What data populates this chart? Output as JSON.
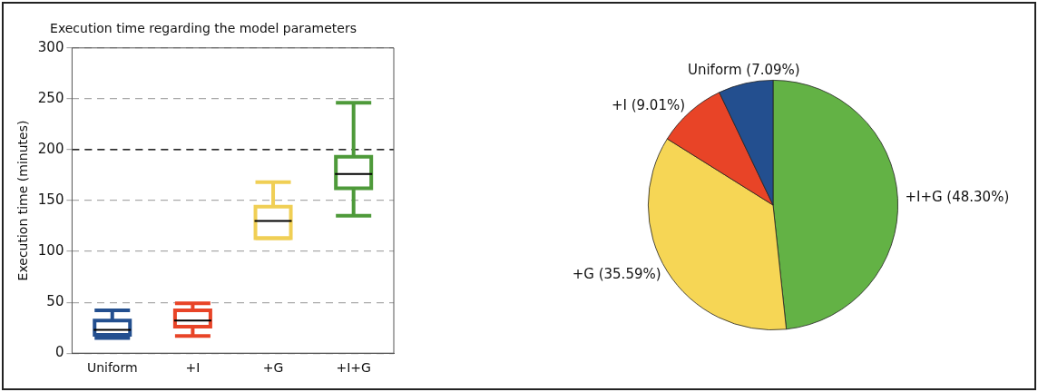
{
  "chart_data": [
    {
      "type": "box",
      "title": "Execution time regarding the model parameters",
      "ylabel": "Execution time (minutes)",
      "categories": [
        "Uniform",
        "+I",
        "+G",
        "+I+G"
      ],
      "colors": [
        "#234f8f",
        "#e84427",
        "#f0cf55",
        "#4e9a3a"
      ],
      "boxes": [
        {
          "low": 15,
          "q1": 18,
          "median": 23,
          "q3": 32,
          "high": 42
        },
        {
          "low": 17,
          "q1": 26,
          "median": 32,
          "q3": 42,
          "high": 49
        },
        {
          "low": 113,
          "q1": 113,
          "median": 130,
          "q3": 144,
          "high": 168
        },
        {
          "low": 135,
          "q1": 162,
          "median": 176,
          "q3": 193,
          "high": 246
        }
      ],
      "ylim": [
        0,
        300
      ],
      "yticks": [
        0,
        50,
        100,
        150,
        200,
        250,
        300
      ],
      "grid": "y",
      "legend": false,
      "ref_lines": [
        {
          "axis": "y",
          "value": 200,
          "color": "#000000",
          "line_style": "dashed"
        }
      ]
    },
    {
      "type": "pie",
      "categories": [
        "Uniform (7.09%)",
        "+I (9.01%)",
        "+G (35.59%)",
        "+I+G (48.30%)"
      ],
      "values": [
        7.09,
        9.01,
        35.59,
        48.3
      ],
      "colors": [
        "#234f8f",
        "#e84427",
        "#f6d655",
        "#63b245"
      ],
      "legend": false
    }
  ]
}
